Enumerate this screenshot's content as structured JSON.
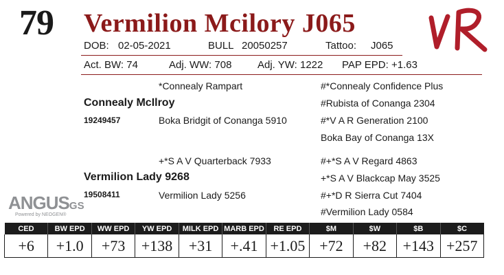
{
  "header": {
    "lot_number": "79",
    "animal_name": "Vermilion Mcilory J065",
    "dob_label": "DOB:",
    "dob_value": "02-05-2021",
    "type_label": "BULL",
    "reg_number": "20050257",
    "tattoo_label": "Tattoo:",
    "tattoo_value": "J065",
    "brand_text": "VR"
  },
  "weights": {
    "act_bw": "Act. BW: 74",
    "adj_ww": "Adj. WW: 708",
    "adj_yw": "Adj. YW: 1222",
    "pap_epd": "PAP EPD: +1.63"
  },
  "pedigree": {
    "sire_sire": "*Connealy Rampart",
    "sire_sire_sire": "#*Connealy Confidence Plus",
    "sire_sire_dam": "#Rubista of Conanga 2304",
    "sire_name": "Connealy McIlroy",
    "sire_reg": "19249457",
    "sire_dam": "Boka Bridgit of Conanga 5910",
    "sire_dam_sire": "#*V A R Generation 2100",
    "sire_dam_dam": "Boka Bay of Conanga 13X",
    "dam_sire": "+*S A V Quarterback 7933",
    "dam_sire_sire": "#+*S A V Regard 4863",
    "dam_sire_dam": "+*S A V Blackcap May 3525",
    "dam_name": "Vermilion Lady 9268",
    "dam_reg": "19508411",
    "dam_dam": "Vermilion Lady 5256",
    "dam_dam_sire": "#+*D R Sierra Cut 7404",
    "dam_dam_dam": "#Vermilion Lady 0584"
  },
  "logo": {
    "main": "ANGUS",
    "suffix": "GS",
    "tagline": "Powered by NEOGEN®"
  },
  "epds": {
    "headers": [
      "CED",
      "BW EPD",
      "WW EPD",
      "YW EPD",
      "MILK EPD",
      "MARB EPD",
      "RE EPD",
      "$M",
      "$W",
      "$B",
      "$C"
    ],
    "values": [
      "+6",
      "+1.0",
      "+73",
      "+138",
      "+31",
      "+.41",
      "+1.05",
      "+72",
      "+82",
      "+143",
      "+257"
    ]
  },
  "colors": {
    "accent": "#8b1a1a",
    "brand_red": "#b01e2a",
    "logo_gray": "#8f9194",
    "table_header": "#1c1c1c"
  }
}
